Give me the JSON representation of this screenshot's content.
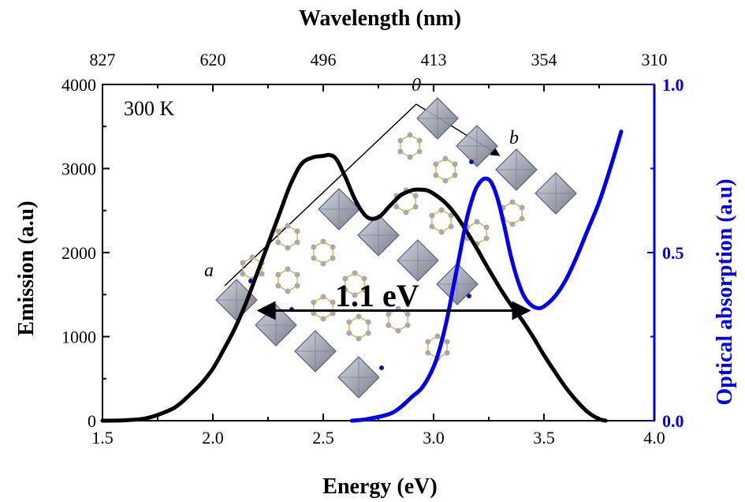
{
  "chart_data": {
    "type": "line",
    "title": "",
    "annotations": {
      "temperature": "300 K",
      "fwhm": "1.1 eV",
      "crystal_axes": [
        "0",
        "b",
        "a"
      ]
    },
    "x_axis": {
      "label": "Energy (eV)",
      "range": [
        1.5,
        4.0
      ],
      "ticks": [
        "1.5",
        "2.0",
        "2.5",
        "3.0",
        "3.5",
        "4.0"
      ]
    },
    "x_top_axis": {
      "label": "Wavelength (nm)",
      "ticks": [
        {
          "label": "827",
          "energy": 1.5
        },
        {
          "label": "620",
          "energy": 2.0
        },
        {
          "label": "496",
          "energy": 2.5
        },
        {
          "label": "413",
          "energy": 3.0
        },
        {
          "label": "354",
          "energy": 3.5
        },
        {
          "label": "310",
          "energy": 4.0
        }
      ]
    },
    "y_axis_left": {
      "label": "Emission (a.u)",
      "range": [
        0,
        4000
      ],
      "ticks": [
        "0",
        "1000",
        "2000",
        "3000",
        "4000"
      ]
    },
    "y_axis_right": {
      "label": "Optical absorption (a.u)",
      "range": [
        0,
        1.0
      ],
      "ticks": [
        "0.0",
        "0.5",
        "1.0"
      ],
      "color": "#0000ee"
    },
    "series": [
      {
        "axis": "left",
        "color": "#000000",
        "x": [
          1.5,
          1.6,
          1.7,
          1.8,
          1.85,
          1.9,
          1.95,
          2.0,
          2.05,
          2.1,
          2.15,
          2.2,
          2.25,
          2.3,
          2.35,
          2.4,
          2.45,
          2.5,
          2.53,
          2.56,
          2.6,
          2.65,
          2.7,
          2.75,
          2.8,
          2.85,
          2.9,
          2.93,
          2.97,
          3.0,
          3.05,
          3.1,
          3.15,
          3.2,
          3.25,
          3.3,
          3.35,
          3.4,
          3.45,
          3.5,
          3.55,
          3.6,
          3.65,
          3.7,
          3.75,
          3.78
        ],
        "y": [
          0,
          5,
          30,
          120,
          200,
          320,
          450,
          620,
          850,
          1100,
          1400,
          1750,
          2100,
          2450,
          2800,
          3050,
          3130,
          3150,
          3160,
          3110,
          2900,
          2600,
          2420,
          2420,
          2550,
          2680,
          2740,
          2750,
          2740,
          2700,
          2600,
          2450,
          2250,
          2030,
          1800,
          1580,
          1380,
          1200,
          1000,
          780,
          580,
          390,
          230,
          100,
          20,
          0
        ]
      },
      {
        "axis": "right",
        "color": "#0000ee",
        "x": [
          2.63,
          2.7,
          2.8,
          2.85,
          2.9,
          2.95,
          3.0,
          3.03,
          3.06,
          3.09,
          3.12,
          3.15,
          3.18,
          3.2,
          3.23,
          3.26,
          3.29,
          3.32,
          3.35,
          3.38,
          3.41,
          3.44,
          3.47,
          3.5,
          3.55,
          3.6,
          3.65,
          3.7,
          3.75,
          3.8,
          3.85
        ],
        "y": [
          0.0,
          0.005,
          0.02,
          0.04,
          0.07,
          0.1,
          0.16,
          0.22,
          0.3,
          0.4,
          0.5,
          0.6,
          0.67,
          0.7,
          0.72,
          0.71,
          0.66,
          0.58,
          0.49,
          0.42,
          0.37,
          0.345,
          0.335,
          0.34,
          0.37,
          0.42,
          0.49,
          0.57,
          0.65,
          0.75,
          0.86
        ]
      }
    ],
    "fwhm_arrow": {
      "x_start": 2.22,
      "x_end": 3.42,
      "y": 1310
    },
    "grid": false,
    "legend": "none"
  }
}
